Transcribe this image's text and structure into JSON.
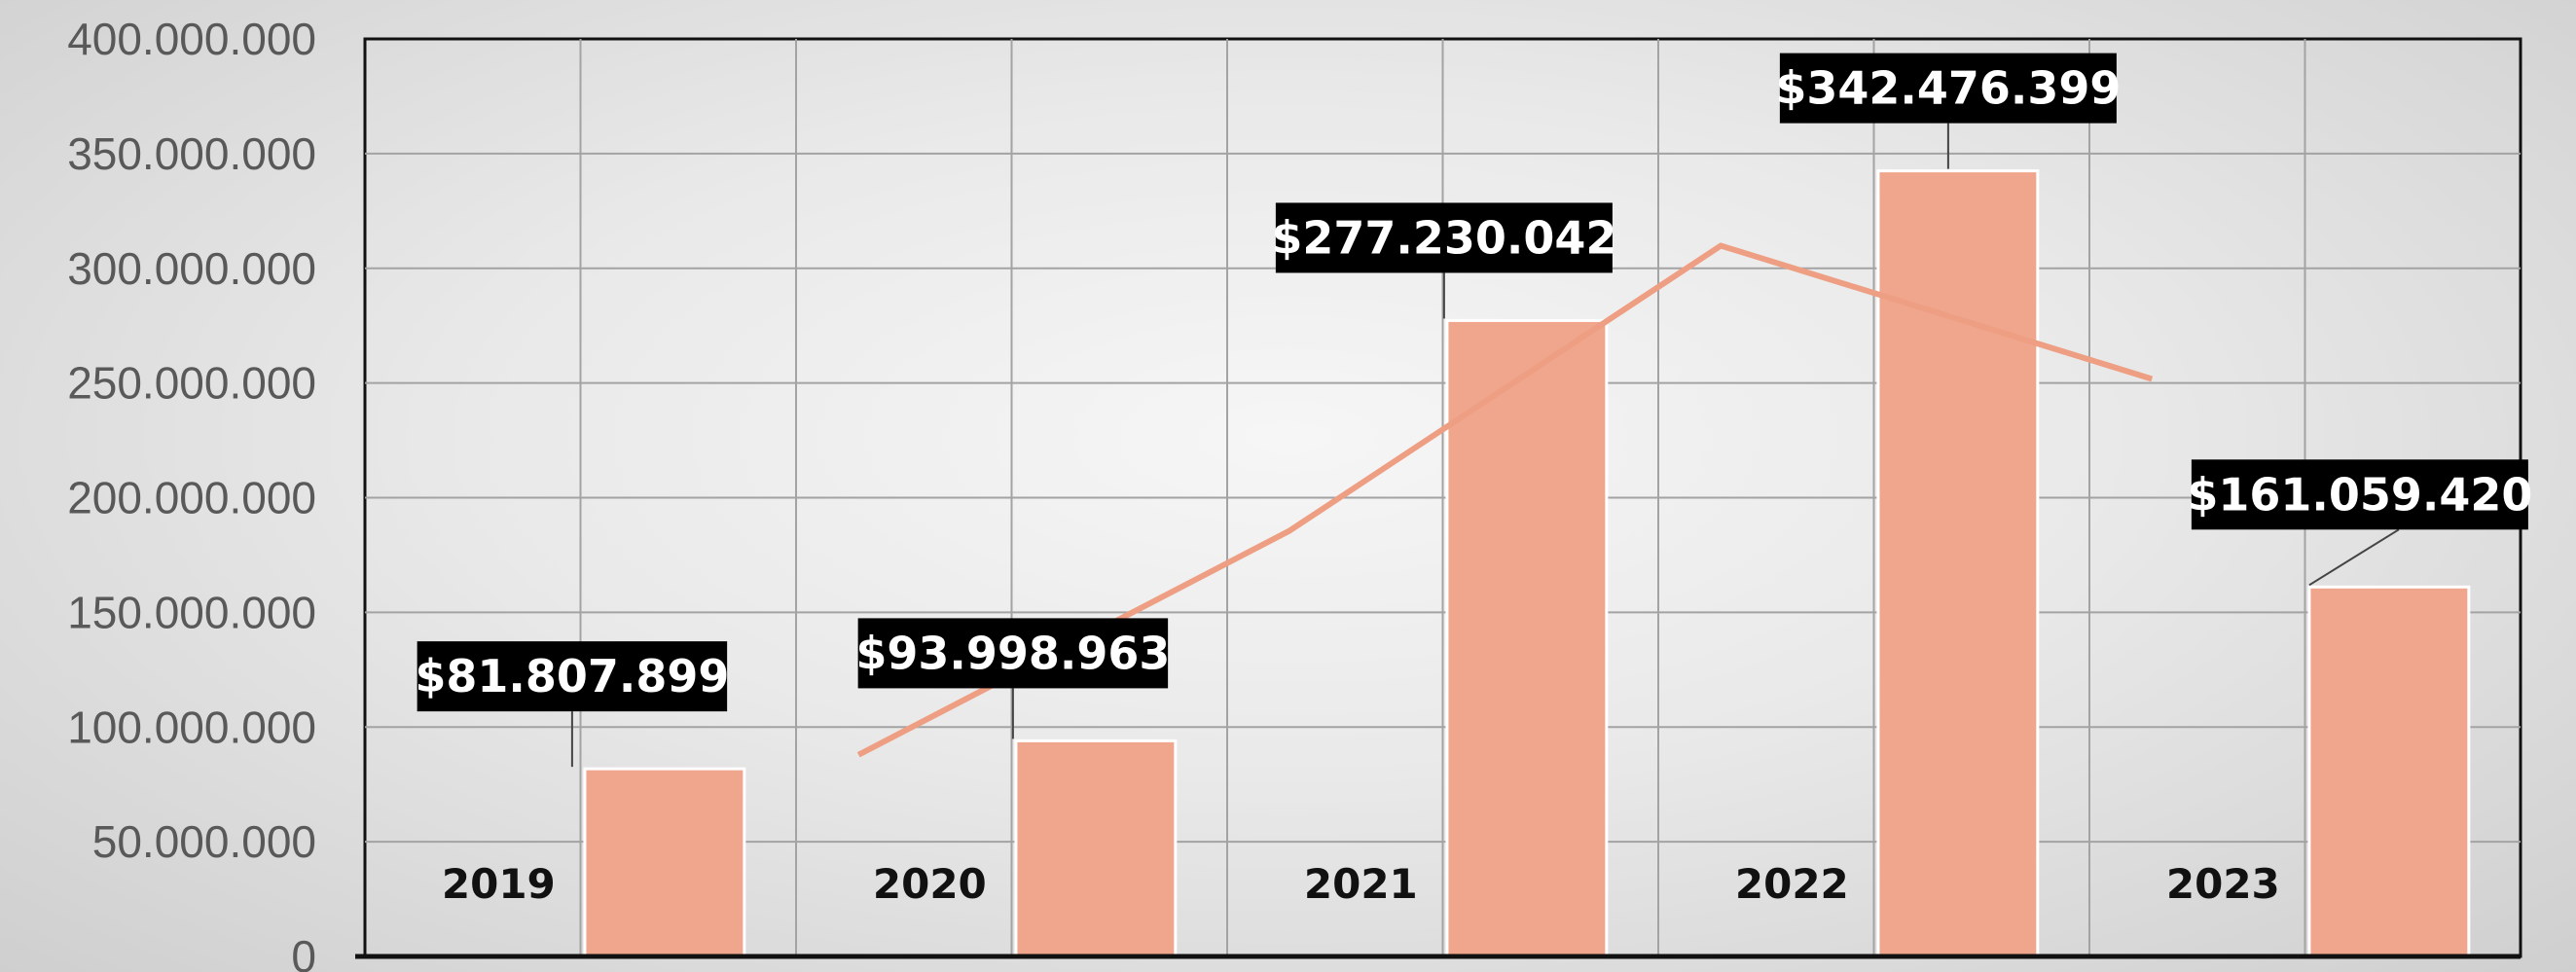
{
  "chart_data": {
    "type": "bar",
    "categories": [
      "2019",
      "2020",
      "2021",
      "2022",
      "2023"
    ],
    "values": [
      81807899,
      93998963,
      277230042,
      342476399,
      161059420
    ],
    "data_labels": [
      "$81.807.899",
      "$93.998.963",
      "$277.230.042",
      "$342.476.399",
      "$161.059.420"
    ],
    "yticks": [
      "0",
      "50.000.000",
      "100.000.000",
      "150.000.000",
      "200.000.000",
      "250.000.000",
      "300.000.000",
      "350.000.000",
      "400.000.000"
    ],
    "ylim": [
      0,
      400000000
    ],
    "grid": true,
    "trendline": {
      "type": "moving-average",
      "period": 2,
      "x": [
        "2020",
        "2021",
        "2022",
        "2023"
      ],
      "values": [
        87903431,
        185614502.5,
        309853220.5,
        251767909.5
      ]
    },
    "colors": {
      "bar": "#f0a68c",
      "bar_outline": "#ffffff",
      "trendline": "#ee9f83",
      "label_bg": "#000000",
      "label_text": "#ffffff",
      "grid": "#a3a3a3",
      "axis": "#111111"
    }
  }
}
